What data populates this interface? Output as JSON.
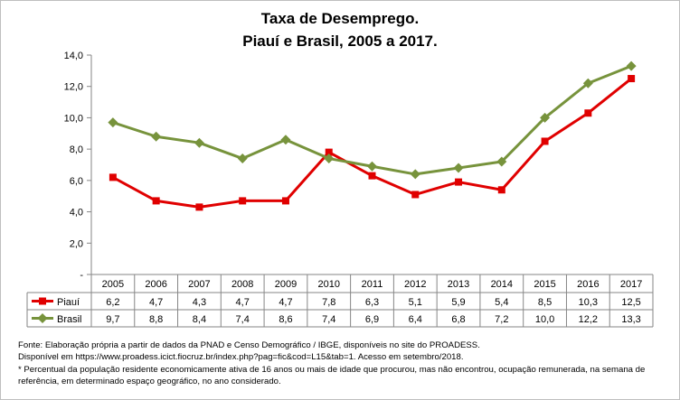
{
  "chart_data": {
    "type": "line",
    "title": "Taxa de Desemprego.",
    "subtitle": "Piauí e Brasil, 2005 a 2017.",
    "categories": [
      "2005",
      "2006",
      "2007",
      "2008",
      "2009",
      "2010",
      "2011",
      "2012",
      "2013",
      "2014",
      "2015",
      "2016",
      "2017"
    ],
    "series": [
      {
        "name": "Piauí",
        "color": "#e00000",
        "marker": "square",
        "values": [
          6.2,
          4.7,
          4.3,
          4.7,
          4.7,
          7.8,
          6.3,
          5.1,
          5.9,
          5.4,
          8.5,
          10.3,
          12.5
        ],
        "labels": [
          "6,2",
          "4,7",
          "4,3",
          "4,7",
          "4,7",
          "7,8",
          "6,3",
          "5,1",
          "5,9",
          "5,4",
          "8,5",
          "10,3",
          "12,5"
        ]
      },
      {
        "name": "Brasil",
        "color": "#77933c",
        "marker": "diamond",
        "values": [
          9.7,
          8.8,
          8.4,
          7.4,
          8.6,
          7.4,
          6.9,
          6.4,
          6.8,
          7.2,
          10.0,
          12.2,
          13.3
        ],
        "labels": [
          "9,7",
          "8,8",
          "8,4",
          "7,4",
          "8,6",
          "7,4",
          "6,9",
          "6,4",
          "6,8",
          "7,2",
          "10,0",
          "12,2",
          "13,3"
        ]
      }
    ],
    "ylim": [
      0,
      14
    ],
    "yticks": [
      0,
      2,
      4,
      6,
      8,
      10,
      12,
      14
    ],
    "ytick_labels": [
      "-",
      "2,0",
      "4,0",
      "6,0",
      "8,0",
      "10,0",
      "12,0",
      "14,0"
    ],
    "legend": "data-table",
    "grid": false
  },
  "notes": {
    "source": "Fonte: Elaboração própria a partir de dados da PNAD e Censo Demográfico / IBGE, disponíveis no site do PROADESS.",
    "url": "Disponível em https://www.proadess.icict.fiocruz.br/index.php?pag=fic&cod=L15&tab=1. Acesso em  setembro/2018.",
    "definition_1": "* Percentual da população residente economicamente ativa de 16 anos ou mais de idade que procurou, mas não encontrou, ocupação remunerada, na semana de",
    "definition_2": "referência, em determinado espaço geográfico, no ano considerado."
  }
}
